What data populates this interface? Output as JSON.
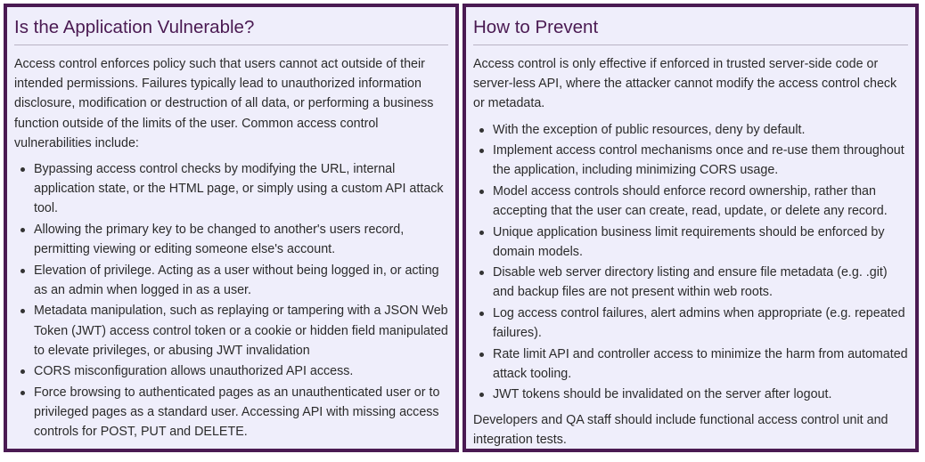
{
  "left_panel": {
    "title": "Is the Application Vulnerable?",
    "intro": "Access control enforces policy such that users cannot act outside of their intended permissions. Failures typically lead to unauthorized information disclosure, modification or destruction of all data, or performing a business function outside of the limits of the user. Common access control vulnerabilities include:",
    "bullets": [
      "Bypassing access control checks by modifying the URL, internal application state, or the HTML page, or simply using a custom API attack tool.",
      "Allowing the primary key to be changed to another's users record, permitting viewing or editing someone else's account.",
      "Elevation of privilege. Acting as a user without being logged in, or acting as an admin when logged in as a user.",
      "Metadata manipulation, such as replaying or tampering with a JSON Web Token (JWT) access control token or a cookie or hidden field manipulated to elevate privileges, or abusing JWT invalidation",
      "CORS misconfiguration allows unauthorized API access.",
      "Force browsing to authenticated pages as an unauthenticated user or to privileged pages as a standard user. Accessing API with missing access controls for POST, PUT and DELETE."
    ]
  },
  "right_panel": {
    "title": "How to Prevent",
    "intro": "Access control is only effective if enforced in trusted server-side code or server-less API, where the attacker cannot modify the access control check or metadata.",
    "bullets": [
      "With the exception of public resources, deny by default.",
      "Implement access control mechanisms once and re-use them throughout the application, including minimizing CORS usage.",
      "Model access controls should enforce record ownership, rather than accepting that the user can create, read, update, or delete any record.",
      "Unique application business limit requirements should be enforced by domain models.",
      "Disable web server directory listing and ensure file metadata (e.g. .git) and backup files are not present within web roots.",
      "Log access control failures, alert admins when appropriate (e.g. repeated failures).",
      "Rate limit API and controller access to minimize the harm from automated attack tooling.",
      "JWT tokens should be invalidated on the server after logout."
    ],
    "outro": "Developers and QA staff should include functional access control unit and integration tests."
  },
  "colors": {
    "border": "#4a1a52",
    "panel_background": "#efeefb",
    "title": "#4a1a52",
    "text": "#2b2b2b"
  }
}
